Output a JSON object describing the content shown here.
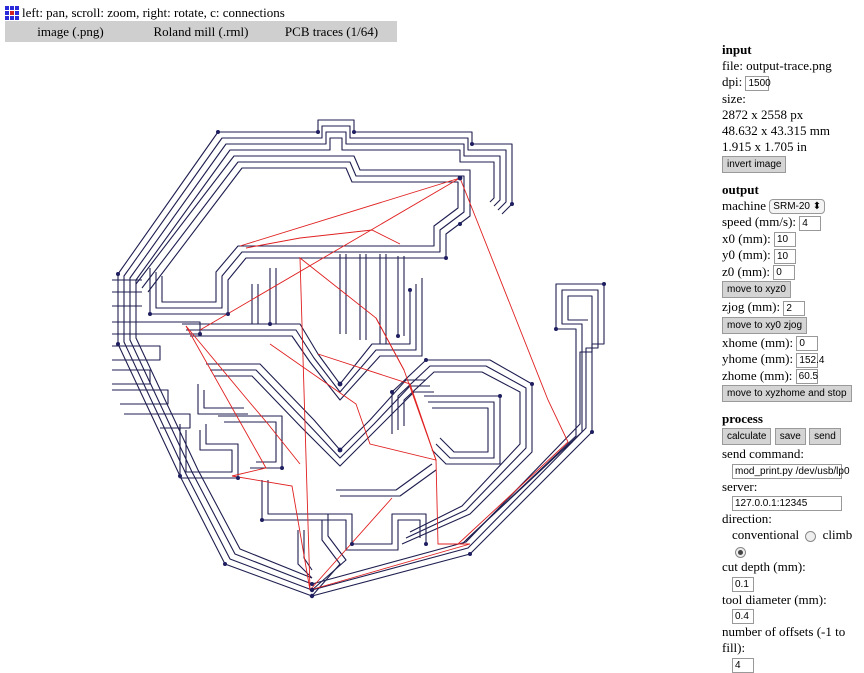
{
  "help_text": "left: pan, scroll: zoom, right: rotate, c: connections",
  "tabs": [
    "image (.png)",
    "Roland mill (.rml)",
    "PCB traces (1/64)"
  ],
  "colors": {
    "tab_bg": "#cfcfcf",
    "trace": "#1e1e50",
    "connection": "#e02020"
  },
  "input": {
    "heading": "input",
    "file": "file: output-trace.png",
    "dpi_label": "dpi:",
    "dpi_value": "1500",
    "size_label": "size:",
    "size_px": "2872 x 2558 px",
    "size_mm": "48.632 x 43.315 mm",
    "size_in": "1.915 x 1.705 in",
    "invert_button": "invert image"
  },
  "output": {
    "heading": "output",
    "machine_label": "machine",
    "machine_value": "SRM-20 ⬍",
    "speed_label": "speed (mm/s):",
    "speed_value": "4",
    "x0_label": "x0 (mm):",
    "x0_value": "10",
    "y0_label": "y0 (mm):",
    "y0_value": "10",
    "z0_label": "z0 (mm):",
    "z0_value": "0",
    "move_xyz0": "move to xyz0",
    "zjog_label": "zjog (mm):",
    "zjog_value": "2",
    "move_xy0zjog": "move to xy0 zjog",
    "xhome_label": "xhome (mm):",
    "xhome_value": "0",
    "yhome_label": "yhome (mm):",
    "yhome_value": "152.4",
    "zhome_label": "zhome (mm):",
    "zhome_value": "60.5",
    "move_home": "move to xyzhome and stop"
  },
  "process": {
    "heading": "process",
    "calculate": "calculate",
    "save": "save",
    "send": "send",
    "send_command_label": "send command:",
    "send_command_value": "mod_print.py /dev/usb/lp0",
    "server_label": "server:",
    "server_value": "127.0.0.1:12345",
    "direction_label": "direction:",
    "conventional": "conventional",
    "climb": "climb",
    "cut_depth_label": "cut depth (mm):",
    "cut_depth_value": "0.1",
    "tool_diameter_label": "tool diameter (mm):",
    "tool_diameter_value": "0.4",
    "offsets_label": "number of offsets (-1 to fill):",
    "offsets_value": "4"
  }
}
